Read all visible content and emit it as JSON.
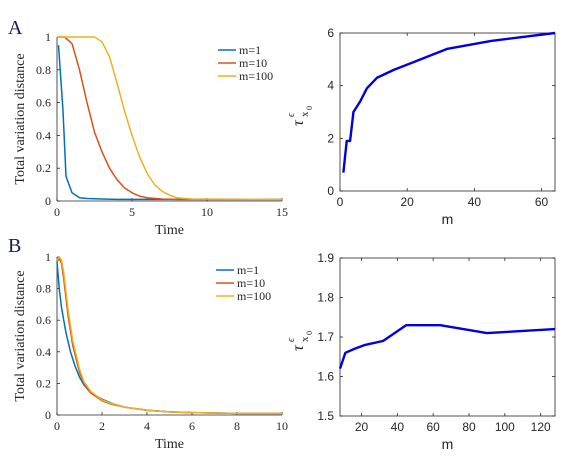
{
  "figure": {
    "panel_labels": [
      "A",
      "B"
    ]
  },
  "chart_data": [
    {
      "id": "A-left",
      "type": "line",
      "xlabel": "Time",
      "ylabel": "Total variation distance",
      "xlim": [
        0,
        15
      ],
      "ylim": [
        0,
        1
      ],
      "xticks": [
        0,
        5,
        10,
        15
      ],
      "yticks": [
        0,
        0.2,
        0.4,
        0.6,
        0.8,
        1
      ],
      "ytick_labels": [
        "0",
        "0.2",
        "0.4",
        "0.6",
        "0.8",
        "1"
      ],
      "legend": "top-right",
      "series": [
        {
          "name": "m=1",
          "color": "#0072BD",
          "x": [
            0.1,
            0.4,
            0.6,
            1.0,
            1.5,
            2,
            3,
            4,
            15
          ],
          "y": [
            0.95,
            0.55,
            0.15,
            0.05,
            0.02,
            0.015,
            0.012,
            0.01,
            0.01
          ]
        },
        {
          "name": "m=10",
          "color": "#D95319",
          "x": [
            0,
            0.5,
            1,
            1.5,
            2,
            2.5,
            3,
            3.5,
            4,
            4.5,
            5,
            5.5,
            6,
            7,
            8,
            15
          ],
          "y": [
            1,
            1,
            0.96,
            0.8,
            0.6,
            0.42,
            0.3,
            0.2,
            0.13,
            0.08,
            0.05,
            0.03,
            0.02,
            0.012,
            0.01,
            0.01
          ]
        },
        {
          "name": "m=100",
          "color": "#EDB120",
          "x": [
            0,
            1,
            2,
            2.5,
            3,
            3.5,
            4,
            4.5,
            5,
            5.5,
            6,
            6.5,
            7,
            7.5,
            8,
            9,
            15
          ],
          "y": [
            1,
            1,
            1,
            1,
            0.97,
            0.88,
            0.72,
            0.55,
            0.4,
            0.27,
            0.17,
            0.1,
            0.06,
            0.035,
            0.02,
            0.012,
            0.01
          ]
        }
      ]
    },
    {
      "id": "A-right",
      "type": "line",
      "xlabel": "m",
      "ylabel_main": "τ",
      "ylabel_sup": "ϵ",
      "ylabel_sub": "x",
      "ylabel_subsub": "0",
      "xlim": [
        0,
        64
      ],
      "ylim": [
        0,
        6
      ],
      "xticks": [
        0,
        20,
        40,
        60
      ],
      "yticks": [
        0,
        2,
        4,
        6
      ],
      "series": [
        {
          "color": "#0000E0",
          "x": [
            1,
            2,
            3,
            4,
            5,
            6,
            8,
            11,
            16,
            22,
            32,
            45,
            64
          ],
          "y": [
            0.7,
            1.9,
            1.9,
            3.0,
            3.2,
            3.4,
            3.9,
            4.3,
            4.6,
            4.9,
            5.4,
            5.7,
            6.0
          ]
        }
      ]
    },
    {
      "id": "B-left",
      "type": "line",
      "xlabel": "Time",
      "ylabel": "Total variation distance",
      "xlim": [
        0,
        10
      ],
      "ylim": [
        0,
        1
      ],
      "xticks": [
        0,
        2,
        4,
        6,
        8,
        10
      ],
      "yticks": [
        0,
        0.2,
        0.4,
        0.6,
        0.8,
        1
      ],
      "ytick_labels": [
        "0",
        "0.2",
        "0.4",
        "0.6",
        "0.8",
        "1"
      ],
      "legend": "top-right",
      "series": [
        {
          "name": "m=1",
          "color": "#0072BD",
          "x": [
            0,
            0.1,
            0.2,
            0.4,
            0.6,
            0.8,
            1.0,
            1.2,
            1.5,
            2,
            2.5,
            3,
            4,
            5,
            6,
            8,
            10
          ],
          "y": [
            0.97,
            0.8,
            0.68,
            0.52,
            0.4,
            0.31,
            0.24,
            0.19,
            0.14,
            0.1,
            0.07,
            0.05,
            0.03,
            0.02,
            0.015,
            0.01,
            0.01
          ]
        },
        {
          "name": "m=10",
          "color": "#D95319",
          "x": [
            0,
            0.1,
            0.2,
            0.3,
            0.5,
            0.7,
            1.0,
            1.2,
            1.5,
            2,
            2.5,
            3,
            4,
            5,
            6,
            8,
            10
          ],
          "y": [
            0.97,
            0.99,
            0.96,
            0.86,
            0.62,
            0.44,
            0.27,
            0.2,
            0.14,
            0.09,
            0.065,
            0.05,
            0.03,
            0.02,
            0.015,
            0.01,
            0.01
          ]
        },
        {
          "name": "m=100",
          "color": "#EDB120",
          "x": [
            0,
            0.1,
            0.2,
            0.3,
            0.5,
            0.7,
            1.0,
            1.2,
            1.5,
            2,
            2.5,
            3,
            4,
            5,
            6,
            8,
            10
          ],
          "y": [
            0.98,
            1.0,
            0.98,
            0.9,
            0.66,
            0.47,
            0.29,
            0.21,
            0.15,
            0.095,
            0.068,
            0.05,
            0.03,
            0.02,
            0.015,
            0.01,
            0.01
          ]
        }
      ]
    },
    {
      "id": "B-right",
      "type": "line",
      "xlabel": "m",
      "ylabel_main": "τ",
      "ylabel_sup": "ϵ",
      "ylabel_sub": "x",
      "ylabel_subsub": "0",
      "xlim": [
        8,
        128
      ],
      "ylim": [
        1.5,
        1.9
      ],
      "xticks": [
        20,
        40,
        60,
        80,
        100,
        120
      ],
      "yticks": [
        1.5,
        1.6,
        1.7,
        1.8,
        1.9
      ],
      "ytick_labels": [
        "1.5",
        "1.6",
        "1.7",
        "1.8",
        "1.9"
      ],
      "series": [
        {
          "color": "#0000E0",
          "x": [
            8,
            11,
            16,
            22,
            32,
            45,
            64,
            90,
            128
          ],
          "y": [
            1.62,
            1.66,
            1.67,
            1.68,
            1.69,
            1.73,
            1.73,
            1.71,
            1.72
          ]
        }
      ]
    }
  ]
}
